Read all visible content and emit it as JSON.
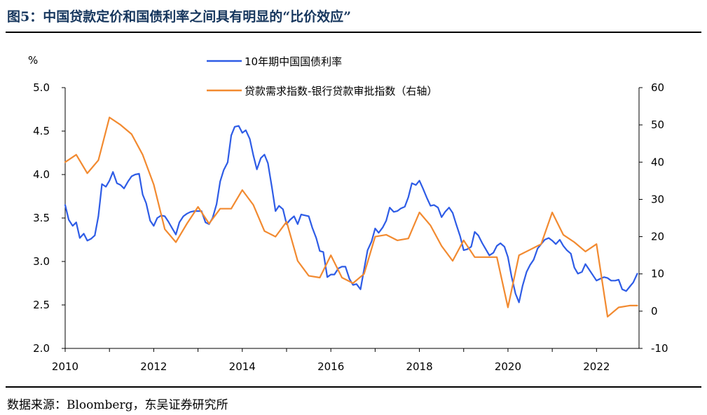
{
  "header": {
    "title": "图5：中国贷款定价和国债利率之间具有明显的“比价效应”"
  },
  "footer": {
    "source": "数据来源：Bloomberg，东吴证券研究所"
  },
  "chart_data": {
    "type": "line",
    "title": "图5：中国贷款定价和国债利率之间具有明显的“比价效应”",
    "y_unit_label": "%",
    "xlabel": "",
    "ylabel": "%",
    "x_ticks": [
      "2010",
      "2012",
      "2014",
      "2016",
      "2018",
      "2020",
      "2022"
    ],
    "xlim": [
      2010.0,
      2022.96
    ],
    "y_left": {
      "lim": [
        2.0,
        5.0
      ],
      "ticks": [
        "5.0",
        "4.5",
        "4.0",
        "3.5",
        "3.0",
        "2.5",
        "2.0"
      ]
    },
    "y_right": {
      "lim": [
        -10,
        60
      ],
      "ticks": [
        "60",
        "50",
        "40",
        "30",
        "20",
        "10",
        "0",
        "-10"
      ]
    },
    "grid": false,
    "legend_position": "top-center",
    "series": [
      {
        "name": "10年期中国国债利率",
        "axis": "left",
        "color": "#2e5ce6",
        "x": [
          2010.0,
          2010.08,
          2010.17,
          2010.25,
          2010.33,
          2010.42,
          2010.5,
          2010.58,
          2010.67,
          2010.75,
          2010.83,
          2010.92,
          2011.0,
          2011.08,
          2011.17,
          2011.25,
          2011.33,
          2011.42,
          2011.5,
          2011.58,
          2011.67,
          2011.75,
          2011.83,
          2011.92,
          2012.0,
          2012.08,
          2012.17,
          2012.25,
          2012.33,
          2012.42,
          2012.5,
          2012.58,
          2012.67,
          2012.75,
          2012.83,
          2012.92,
          2013.0,
          2013.08,
          2013.17,
          2013.25,
          2013.33,
          2013.42,
          2013.5,
          2013.58,
          2013.67,
          2013.75,
          2013.83,
          2013.92,
          2014.0,
          2014.08,
          2014.17,
          2014.25,
          2014.33,
          2014.42,
          2014.5,
          2014.58,
          2014.67,
          2014.75,
          2014.83,
          2014.92,
          2015.0,
          2015.08,
          2015.17,
          2015.25,
          2015.33,
          2015.42,
          2015.5,
          2015.58,
          2015.67,
          2015.75,
          2015.83,
          2015.92,
          2016.0,
          2016.08,
          2016.17,
          2016.25,
          2016.33,
          2016.42,
          2016.5,
          2016.58,
          2016.67,
          2016.75,
          2016.83,
          2016.92,
          2017.0,
          2017.08,
          2017.17,
          2017.25,
          2017.33,
          2017.42,
          2017.5,
          2017.58,
          2017.67,
          2017.75,
          2017.83,
          2017.92,
          2018.0,
          2018.08,
          2018.17,
          2018.25,
          2018.33,
          2018.42,
          2018.5,
          2018.58,
          2018.67,
          2018.75,
          2018.83,
          2018.92,
          2019.0,
          2019.08,
          2019.17,
          2019.25,
          2019.33,
          2019.42,
          2019.5,
          2019.58,
          2019.67,
          2019.75,
          2019.83,
          2019.92,
          2020.0,
          2020.08,
          2020.17,
          2020.25,
          2020.33,
          2020.42,
          2020.5,
          2020.58,
          2020.67,
          2020.75,
          2020.83,
          2020.92,
          2021.0,
          2021.08,
          2021.17,
          2021.25,
          2021.33,
          2021.42,
          2021.5,
          2021.58,
          2021.67,
          2021.75,
          2021.83,
          2021.92,
          2022.0,
          2022.08,
          2022.17,
          2022.25,
          2022.33,
          2022.42,
          2022.5,
          2022.58,
          2022.67,
          2022.75,
          2022.83,
          2022.92
        ],
        "values": [
          3.65,
          3.48,
          3.41,
          3.45,
          3.27,
          3.32,
          3.24,
          3.26,
          3.3,
          3.52,
          3.89,
          3.86,
          3.93,
          4.03,
          3.9,
          3.88,
          3.84,
          3.92,
          3.98,
          4.0,
          4.01,
          3.77,
          3.67,
          3.47,
          3.41,
          3.5,
          3.53,
          3.52,
          3.46,
          3.38,
          3.31,
          3.45,
          3.52,
          3.55,
          3.57,
          3.58,
          3.58,
          3.58,
          3.45,
          3.43,
          3.5,
          3.66,
          3.92,
          4.05,
          4.14,
          4.45,
          4.55,
          4.56,
          4.48,
          4.51,
          4.41,
          4.22,
          4.06,
          4.19,
          4.23,
          4.13,
          3.85,
          3.58,
          3.64,
          3.6,
          3.43,
          3.48,
          3.52,
          3.43,
          3.54,
          3.53,
          3.52,
          3.39,
          3.27,
          3.12,
          3.11,
          2.82,
          2.85,
          2.85,
          2.92,
          2.94,
          2.94,
          2.8,
          2.73,
          2.74,
          2.68,
          2.91,
          3.13,
          3.23,
          3.38,
          3.33,
          3.39,
          3.47,
          3.62,
          3.57,
          3.58,
          3.61,
          3.63,
          3.74,
          3.9,
          3.88,
          3.93,
          3.84,
          3.73,
          3.64,
          3.65,
          3.62,
          3.51,
          3.57,
          3.62,
          3.56,
          3.43,
          3.29,
          3.13,
          3.14,
          3.17,
          3.34,
          3.3,
          3.21,
          3.14,
          3.07,
          3.1,
          3.18,
          3.21,
          3.17,
          3.05,
          2.83,
          2.63,
          2.53,
          2.72,
          2.88,
          2.96,
          3.02,
          3.15,
          3.2,
          3.25,
          3.27,
          3.24,
          3.2,
          3.25,
          3.18,
          3.13,
          3.09,
          2.93,
          2.86,
          2.88,
          2.97,
          2.91,
          2.84,
          2.78,
          2.8,
          2.82,
          2.81,
          2.78,
          2.78,
          2.79,
          2.68,
          2.66,
          2.71,
          2.76,
          2.86
        ]
      },
      {
        "name": "贷款需求指数-银行贷款审批指数（右轴）",
        "axis": "right",
        "color": "#f28a30",
        "x": [
          2010.0,
          2010.25,
          2010.5,
          2010.75,
          2011.0,
          2011.25,
          2011.5,
          2011.75,
          2012.0,
          2012.25,
          2012.5,
          2012.75,
          2013.0,
          2013.25,
          2013.5,
          2013.75,
          2014.0,
          2014.25,
          2014.5,
          2014.75,
          2015.0,
          2015.25,
          2015.5,
          2015.75,
          2016.0,
          2016.25,
          2016.5,
          2016.75,
          2017.0,
          2017.25,
          2017.5,
          2017.75,
          2018.0,
          2018.25,
          2018.5,
          2018.75,
          2019.0,
          2019.25,
          2019.5,
          2019.75,
          2020.0,
          2020.25,
          2020.5,
          2020.75,
          2021.0,
          2021.25,
          2021.5,
          2021.75,
          2022.0,
          2022.25,
          2022.5,
          2022.75,
          2022.92
        ],
        "values": [
          40,
          42,
          37,
          40.5,
          52,
          50,
          47.5,
          42,
          34,
          22,
          18.5,
          23.5,
          28,
          23.5,
          27.5,
          27.5,
          32.5,
          28.5,
          21.5,
          20,
          24,
          13.5,
          9.5,
          9,
          15,
          9,
          7.5,
          10,
          20,
          20.5,
          19,
          19.5,
          26.5,
          23,
          17.5,
          13.5,
          19,
          14.5,
          14.5,
          14.5,
          1,
          15,
          16.5,
          18,
          26.5,
          20.5,
          18.5,
          16,
          18,
          -1.5,
          1,
          1.5,
          1.5
        ]
      }
    ]
  }
}
